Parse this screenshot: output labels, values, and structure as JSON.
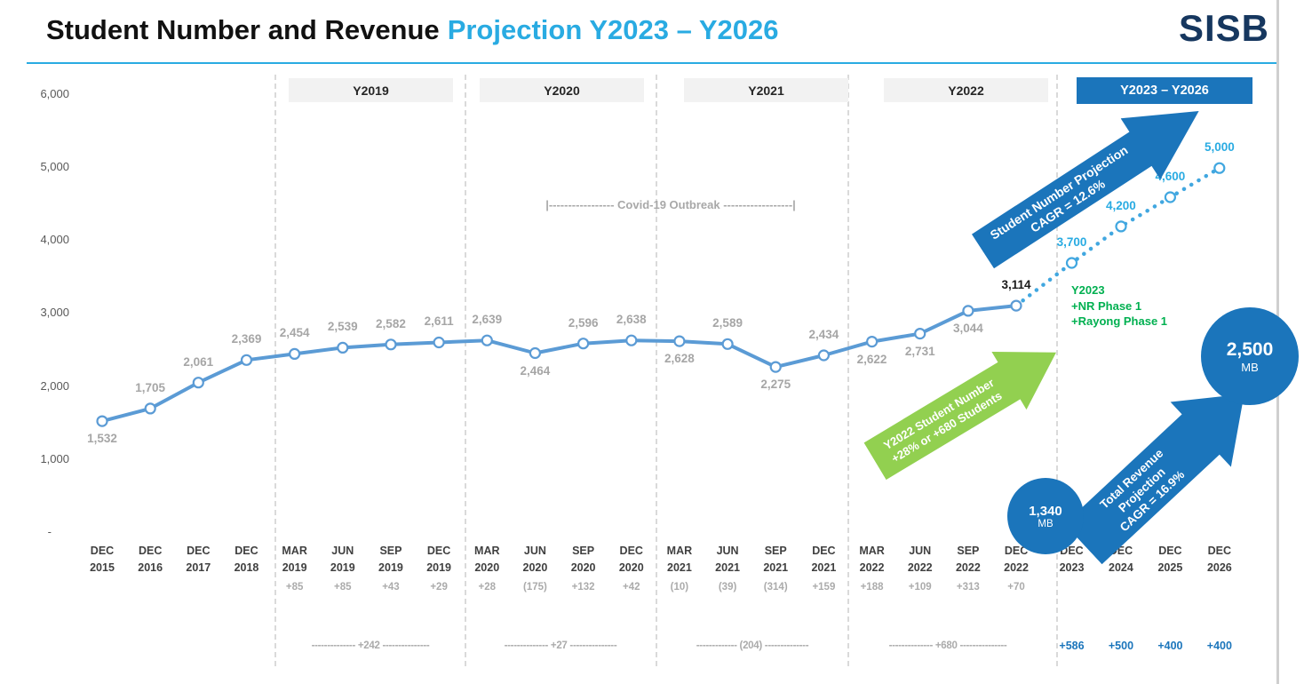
{
  "header": {
    "title_black": "Student Number and Revenue",
    "title_blue": "Projection Y2023 – Y2026",
    "logo": "SISB"
  },
  "chart_data": {
    "type": "line",
    "title": "Student Number and Revenue Projection Y2023 – Y2026",
    "ylim": [
      0,
      6000
    ],
    "series_color_historical": "#5B9BD5",
    "series_color_projection": "#41A7E0",
    "y_ticks": [
      {
        "value": 6000,
        "label": "6,000"
      },
      {
        "value": 5000,
        "label": "5,000"
      },
      {
        "value": 4000,
        "label": "4,000"
      },
      {
        "value": 3000,
        "label": "3,000"
      },
      {
        "value": 2000,
        "label": "2,000"
      },
      {
        "value": 1000,
        "label": "1,000"
      },
      {
        "value": 0,
        "label": "-"
      }
    ],
    "points": [
      {
        "month": "DEC",
        "year": "2015",
        "value": 1532,
        "label": "1,532",
        "delta": "",
        "label_pos": "below",
        "style": "grey",
        "phase": "historical"
      },
      {
        "month": "DEC",
        "year": "2016",
        "value": 1705,
        "label": "1,705",
        "delta": "",
        "label_pos": "above",
        "style": "grey",
        "phase": "historical"
      },
      {
        "month": "DEC",
        "year": "2017",
        "value": 2061,
        "label": "2,061",
        "delta": "",
        "label_pos": "above",
        "style": "grey",
        "phase": "historical"
      },
      {
        "month": "DEC",
        "year": "2018",
        "value": 2369,
        "label": "2,369",
        "delta": "",
        "label_pos": "above",
        "style": "grey",
        "phase": "historical"
      },
      {
        "month": "MAR",
        "year": "2019",
        "value": 2454,
        "label": "2,454",
        "delta": "+85",
        "label_pos": "above",
        "style": "grey",
        "phase": "historical"
      },
      {
        "month": "JUN",
        "year": "2019",
        "value": 2539,
        "label": "2,539",
        "delta": "+85",
        "label_pos": "above",
        "style": "grey",
        "phase": "historical"
      },
      {
        "month": "SEP",
        "year": "2019",
        "value": 2582,
        "label": "2,582",
        "delta": "+43",
        "label_pos": "above",
        "style": "grey",
        "phase": "historical"
      },
      {
        "month": "DEC",
        "year": "2019",
        "value": 2611,
        "label": "2,611",
        "delta": "+29",
        "label_pos": "above",
        "style": "grey",
        "phase": "historical"
      },
      {
        "month": "MAR",
        "year": "2020",
        "value": 2639,
        "label": "2,639",
        "delta": "+28",
        "label_pos": "above",
        "style": "grey",
        "phase": "historical"
      },
      {
        "month": "JUN",
        "year": "2020",
        "value": 2464,
        "label": "2,464",
        "delta": "(175)",
        "label_pos": "below",
        "style": "grey",
        "phase": "historical"
      },
      {
        "month": "SEP",
        "year": "2020",
        "value": 2596,
        "label": "2,596",
        "delta": "+132",
        "label_pos": "above",
        "style": "grey",
        "phase": "historical"
      },
      {
        "month": "DEC",
        "year": "2020",
        "value": 2638,
        "label": "2,638",
        "delta": "+42",
        "label_pos": "above",
        "style": "grey",
        "phase": "historical"
      },
      {
        "month": "MAR",
        "year": "2021",
        "value": 2628,
        "label": "2,628",
        "delta": "(10)",
        "label_pos": "below",
        "style": "grey",
        "phase": "historical"
      },
      {
        "month": "JUN",
        "year": "2021",
        "value": 2589,
        "label": "2,589",
        "delta": "(39)",
        "label_pos": "above",
        "style": "grey",
        "phase": "historical"
      },
      {
        "month": "SEP",
        "year": "2021",
        "value": 2275,
        "label": "2,275",
        "delta": "(314)",
        "label_pos": "below",
        "style": "grey",
        "phase": "historical"
      },
      {
        "month": "DEC",
        "year": "2021",
        "value": 2434,
        "label": "2,434",
        "delta": "+159",
        "label_pos": "above",
        "style": "grey",
        "phase": "historical"
      },
      {
        "month": "MAR",
        "year": "2022",
        "value": 2622,
        "label": "2,622",
        "delta": "+188",
        "label_pos": "below",
        "style": "grey",
        "phase": "historical"
      },
      {
        "month": "JUN",
        "year": "2022",
        "value": 2731,
        "label": "2,731",
        "delta": "+109",
        "label_pos": "below",
        "style": "grey",
        "phase": "historical"
      },
      {
        "month": "SEP",
        "year": "2022",
        "value": 3044,
        "label": "3,044",
        "delta": "+313",
        "label_pos": "below",
        "style": "grey",
        "phase": "historical"
      },
      {
        "month": "DEC",
        "year": "2022",
        "value": 3114,
        "label": "3,114",
        "delta": "+70",
        "label_pos": "above",
        "style": "black",
        "phase": "historical"
      },
      {
        "month": "DEC",
        "year": "2023",
        "value": 3700,
        "label": "3,700",
        "delta": "+586",
        "label_pos": "above",
        "style": "blue",
        "phase": "projection"
      },
      {
        "month": "DEC",
        "year": "2024",
        "value": 4200,
        "label": "4,200",
        "delta": "+500",
        "label_pos": "above",
        "style": "blue",
        "phase": "projection"
      },
      {
        "month": "DEC",
        "year": "2025",
        "value": 4600,
        "label": "4,600",
        "delta": "+400",
        "label_pos": "above",
        "style": "blue",
        "phase": "projection"
      },
      {
        "month": "DEC",
        "year": "2026",
        "value": 5000,
        "label": "5,000",
        "delta": "+400",
        "label_pos": "above",
        "style": "blue",
        "phase": "projection"
      }
    ],
    "groups": [
      {
        "label": "Y2019",
        "total": "-------------- +242 ---------------"
      },
      {
        "label": "Y2020",
        "total": "-------------- +27 ---------------"
      },
      {
        "label": "Y2021",
        "total": "------------- (204) --------------"
      },
      {
        "label": "Y2022",
        "total": "-------------- +680 ---------------"
      }
    ],
    "projection_header": "Y2023 – Y2026",
    "covid_annotation": "|----------------- Covid-19 Outbreak ------------------|"
  },
  "annotations": {
    "student_arrow_line1": "Student Number Projection",
    "student_arrow_line2": "CAGR = 12.6%",
    "green_arrow_line1": "Y2022 Student Number",
    "green_arrow_line2": "+28% or +680 Students",
    "revenue_arrow_line1": "Total Revenue",
    "revenue_arrow_line2": "Projection",
    "revenue_arrow_line3": "CAGR = 16.9%",
    "green_note": [
      "Y2023",
      "+NR Phase 1",
      "+Rayong Phase 1"
    ],
    "revenue_start": {
      "value": "1,340",
      "unit": "MB"
    },
    "revenue_end": {
      "value": "2,500",
      "unit": "MB"
    }
  },
  "colors": {
    "accent_blue": "#29ABE2",
    "dark_blue": "#1B75BB",
    "green_arrow": "#92D050",
    "green_text": "#00B050",
    "grey_label": "#A6A6A6"
  }
}
